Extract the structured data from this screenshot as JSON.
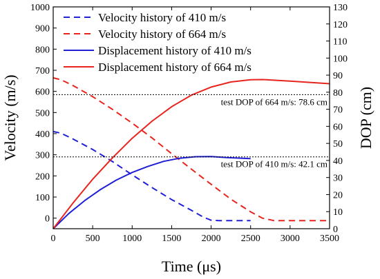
{
  "chart_data": {
    "type": "line",
    "xlabel": "Time (μs)",
    "ylabel": "Velocity (m/s)",
    "y2label": "DOP (cm)",
    "xlim": [
      0,
      3500
    ],
    "ylim": [
      -50,
      1000
    ],
    "y2lim": [
      0,
      130
    ],
    "xticks": [
      0,
      500,
      1000,
      1500,
      2000,
      2500,
      3000,
      3500
    ],
    "yticks": [
      0,
      100,
      200,
      300,
      400,
      500,
      600,
      700,
      800,
      900,
      1000
    ],
    "y2ticks": [
      0,
      10,
      20,
      30,
      40,
      50,
      60,
      70,
      80,
      90,
      100,
      110,
      120,
      130
    ],
    "grid": false,
    "legend_position": "top-left",
    "colors": {
      "blue": "#1f1fd6",
      "red": "#e8231c"
    },
    "series": [
      {
        "name": "Velocity history of 410 m/s",
        "axis": "left",
        "style": "dashed",
        "color": "#1f1fd6",
        "x": [
          0,
          100,
          250,
          500,
          750,
          1000,
          1250,
          1500,
          1750,
          1900,
          2000,
          2100,
          2500
        ],
        "y": [
          410,
          402,
          375,
          325,
          268,
          205,
          145,
          88,
          37,
          5,
          -10,
          -12,
          -12
        ]
      },
      {
        "name": "Velocity history of 664 m/s",
        "axis": "left",
        "style": "dashed",
        "color": "#e8231c",
        "x": [
          0,
          100,
          250,
          500,
          750,
          1000,
          1250,
          1500,
          1750,
          2000,
          2250,
          2500,
          2650,
          2800,
          3000,
          3500
        ],
        "y": [
          664,
          655,
          628,
          575,
          515,
          450,
          380,
          305,
          232,
          160,
          90,
          30,
          0,
          -12,
          -12,
          -12
        ]
      },
      {
        "name": "Displacement history of 410 m/s",
        "axis": "right",
        "style": "solid",
        "color": "#1f1fd6",
        "x": [
          0,
          200,
          400,
          600,
          800,
          1000,
          1200,
          1400,
          1600,
          1800,
          2000,
          2200,
          2500
        ],
        "y": [
          0,
          9,
          16.5,
          23,
          28.5,
          33,
          36.5,
          39.5,
          41.3,
          42.2,
          42.3,
          41.7,
          41.1
        ]
      },
      {
        "name": "Displacement history of 664 m/s",
        "axis": "right",
        "style": "solid",
        "color": "#e8231c",
        "x": [
          0,
          250,
          500,
          750,
          1000,
          1250,
          1500,
          1750,
          2000,
          2250,
          2500,
          2650,
          3000,
          3500
        ],
        "y": [
          0,
          15,
          29,
          41.5,
          53,
          63,
          71.5,
          78.3,
          83,
          86,
          87.3,
          87.4,
          86.5,
          85
        ]
      }
    ],
    "reference_lines": [
      {
        "label": "test DOP of 664 m/s: 78.6 cm",
        "axis": "right",
        "y": 78.6
      },
      {
        "label": "test DOP of 410 m/s: 42.1 cm",
        "axis": "right",
        "y": 42.1
      }
    ]
  }
}
